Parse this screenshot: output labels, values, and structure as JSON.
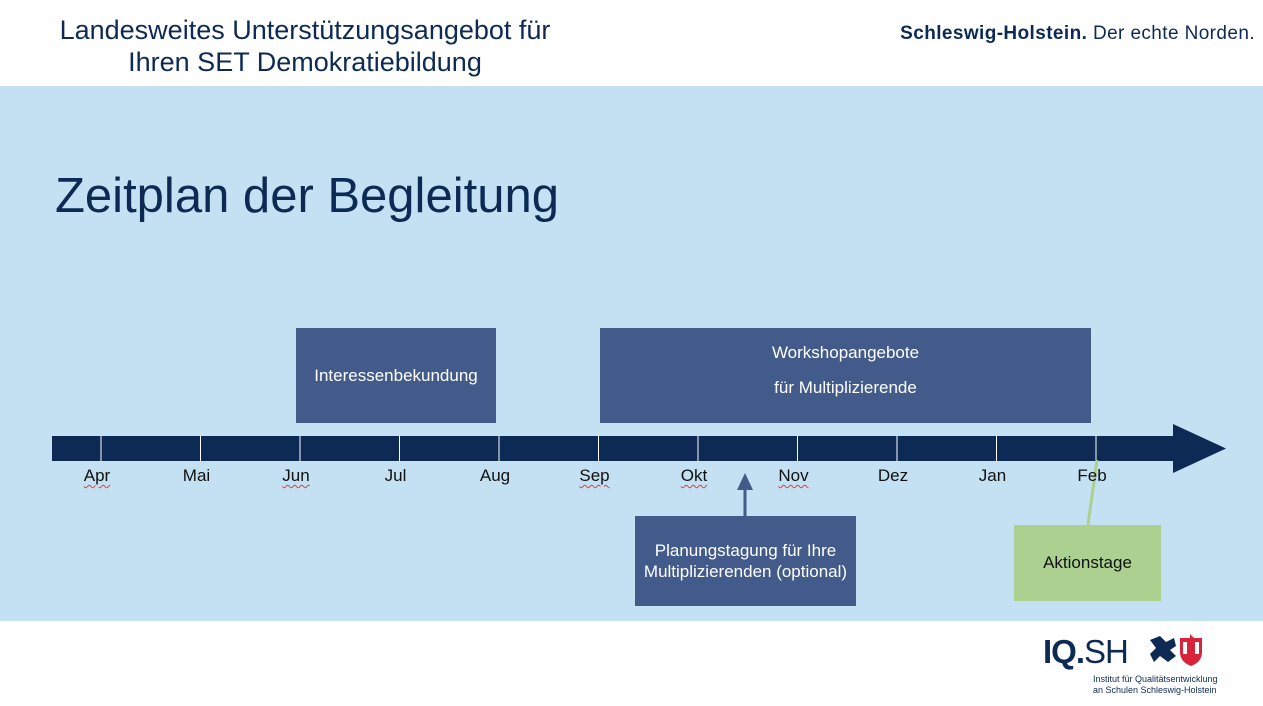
{
  "header": {
    "title_line1": "Landesweites Unterstützungsangebot für",
    "title_line2": "Ihren SET Demokratiebildung",
    "brand_bold": "Schleswig-Holstein.",
    "brand_rest": " Der echte Norden."
  },
  "slide": {
    "title": "Zeitplan der Begleitung"
  },
  "timeline": {
    "months": [
      "Apr",
      "Mai",
      "Jun",
      "Jul",
      "Aug",
      "Sep",
      "Okt",
      "Nov",
      "Dez",
      "Jan",
      "Feb"
    ]
  },
  "boxes": {
    "interest": "Interessenbekundung",
    "workshop_line1": "Workshopangebote",
    "workshop_line2": "für Multiplizierende",
    "planning_line1": "Planungstagung für Ihre",
    "planning_line2": "Multiplizierenden (optional)",
    "action": "Aktionstage"
  },
  "logo": {
    "name_iq": "IQ.",
    "name_sh": "SH",
    "sub_line1": "Institut für Qualitätsentwicklung",
    "sub_line2": "an Schulen Schleswig-Holstein"
  },
  "colors": {
    "navy": "#0c2a54",
    "box_blue": "#425b8b",
    "band": "#c3e1f3",
    "green": "#acd08f",
    "logo_red": "#d8233b"
  }
}
